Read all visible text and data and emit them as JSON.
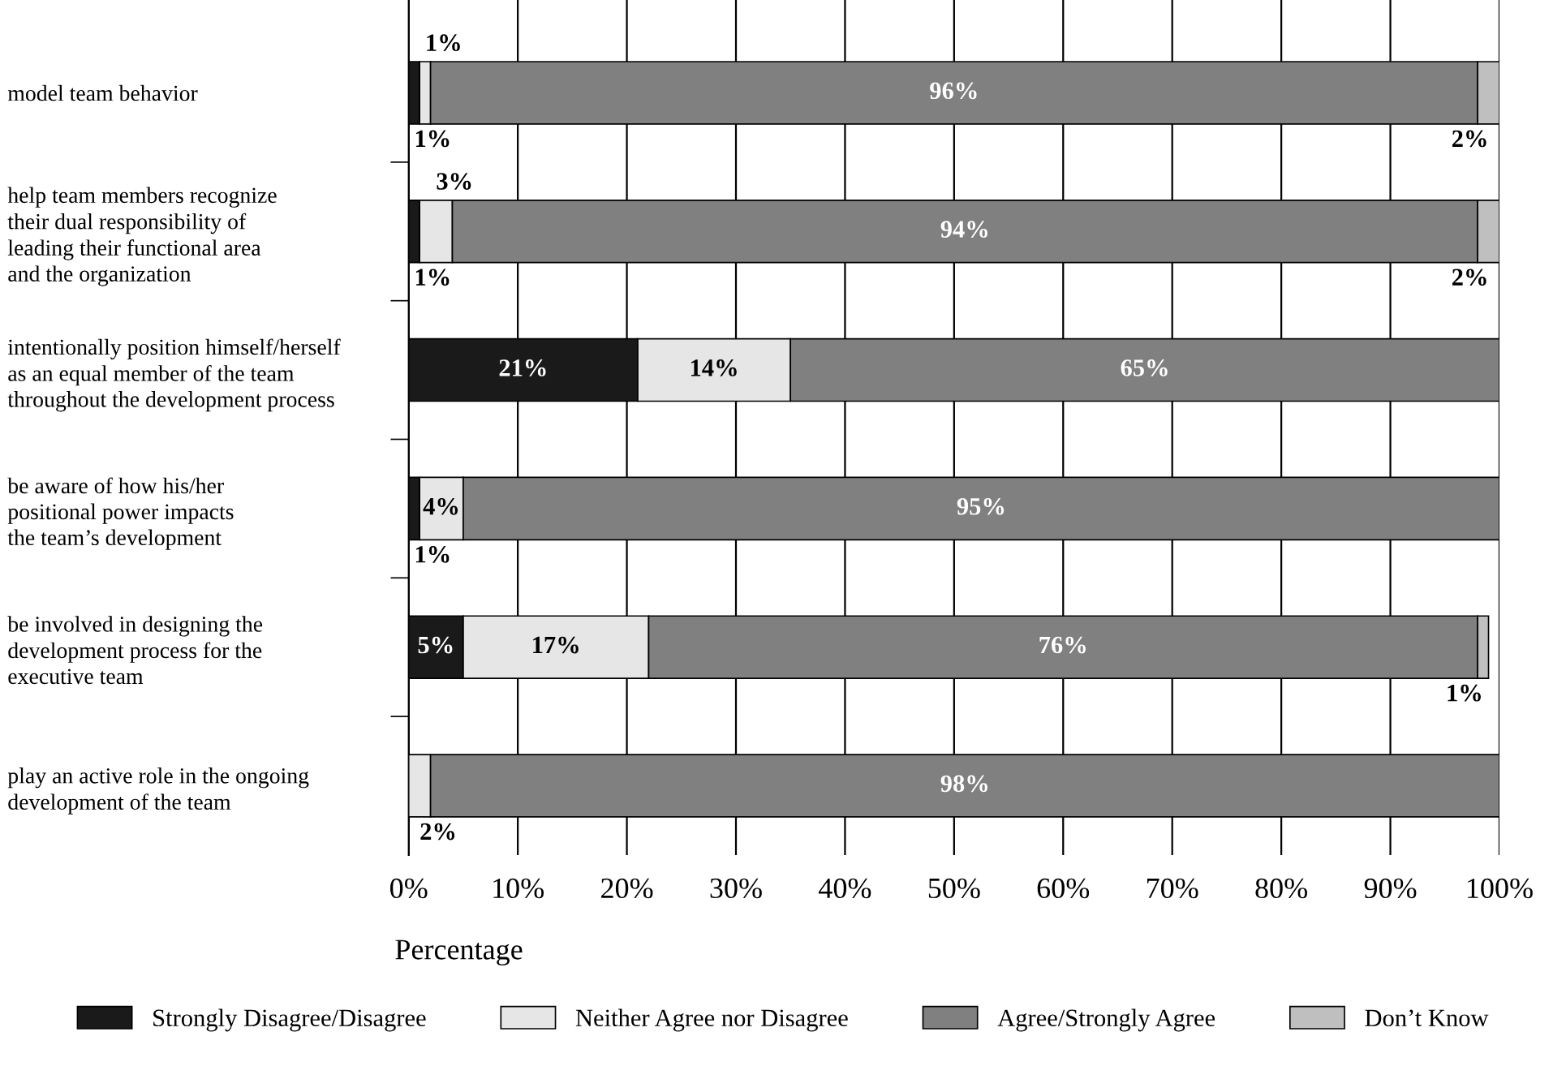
{
  "chart_data": {
    "type": "bar",
    "orientation": "horizontal",
    "stacked": true,
    "categories": [
      "model team behavior",
      "help team members recognize\ntheir dual responsibility of\nleading their functional area\nand the organization",
      "intentionally position himself/herself\nas an equal member of the team\nthroughout the development process",
      "be aware of how his/her\npositional power impacts\nthe team’s development",
      "be involved in designing the\ndevelopment process for the\nexecutive team",
      "play an active role in the ongoing\ndevelopment of the team"
    ],
    "series": [
      {
        "name": "Strongly Disagree/Disagree",
        "color": "#1a1a1a",
        "values": [
          1,
          1,
          21,
          1,
          5,
          null
        ],
        "value_labels": [
          "1%",
          "1%",
          "21%",
          "1%",
          "5%",
          null
        ]
      },
      {
        "name": "Neither Agree nor Disagree",
        "color": "#e6e6e6",
        "values": [
          1,
          3,
          14,
          4,
          17,
          2
        ],
        "value_labels": [
          "1%",
          "3%",
          "14%",
          "4%",
          "17%",
          "2%"
        ]
      },
      {
        "name": "Agree/Strongly Agree",
        "color": "#808080",
        "values": [
          96,
          94,
          65,
          95,
          76,
          98
        ],
        "value_labels": [
          "96%",
          "94%",
          "65%",
          "95%",
          "76%",
          "98%"
        ]
      },
      {
        "name": "Don’t Know",
        "color": "#bfbfbf",
        "values": [
          2,
          2,
          null,
          null,
          1,
          null
        ],
        "value_labels": [
          "2%",
          "2%",
          null,
          null,
          "1%",
          null
        ]
      }
    ],
    "xlim": [
      0,
      100
    ],
    "xticks": [
      {
        "value": 0,
        "label": "0%"
      },
      {
        "value": 10,
        "label": "10%"
      },
      {
        "value": 20,
        "label": "20%"
      },
      {
        "value": 30,
        "label": "30%"
      },
      {
        "value": 40,
        "label": "40%"
      },
      {
        "value": 50,
        "label": "50%"
      },
      {
        "value": 60,
        "label": "60%"
      },
      {
        "value": 70,
        "label": "70%"
      },
      {
        "value": 80,
        "label": "80%"
      },
      {
        "value": 90,
        "label": "90%"
      },
      {
        "value": 100,
        "label": "100%"
      }
    ],
    "xlabel": "Percentage",
    "grid": "x",
    "legend": "bottom"
  }
}
